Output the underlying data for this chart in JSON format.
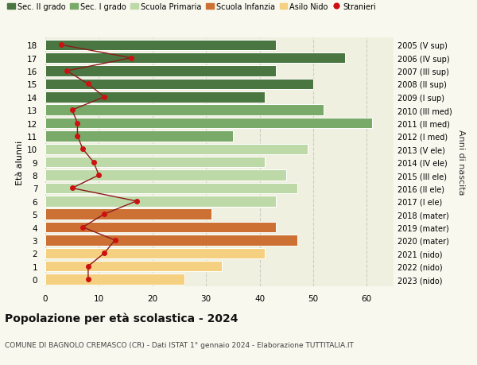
{
  "ages": [
    18,
    17,
    16,
    15,
    14,
    13,
    12,
    11,
    10,
    9,
    8,
    7,
    6,
    5,
    4,
    3,
    2,
    1,
    0
  ],
  "bar_values": [
    43,
    56,
    43,
    50,
    41,
    52,
    61,
    35,
    49,
    41,
    45,
    47,
    43,
    31,
    43,
    47,
    41,
    33,
    26
  ],
  "stranieri_values": [
    3,
    16,
    4,
    8,
    11,
    5,
    6,
    6,
    7,
    9,
    10,
    5,
    17,
    11,
    7,
    13,
    11,
    8,
    8
  ],
  "right_labels": [
    "2005 (V sup)",
    "2006 (IV sup)",
    "2007 (III sup)",
    "2008 (II sup)",
    "2009 (I sup)",
    "2010 (III med)",
    "2011 (II med)",
    "2012 (I med)",
    "2013 (V ele)",
    "2014 (IV ele)",
    "2015 (III ele)",
    "2016 (II ele)",
    "2017 (I ele)",
    "2018 (mater)",
    "2019 (mater)",
    "2020 (mater)",
    "2021 (nido)",
    "2022 (nido)",
    "2023 (nido)"
  ],
  "colors": {
    "sec2": "#4a7741",
    "sec1": "#7aaa6a",
    "primaria": "#bdd9a8",
    "infanzia": "#cc7033",
    "nido": "#f5d080"
  },
  "legend_colors": {
    "Sec. II grado": "#4a7741",
    "Sec. I grado": "#7aaa6a",
    "Scuola Primaria": "#bdd9a8",
    "Scuola Infanzia": "#cc7033",
    "Asilo Nido": "#f5d080",
    "Stranieri": "#cc1111"
  },
  "stranieri_line_color": "#8b1a1a",
  "stranieri_dot_color": "#cc1111",
  "title": "Popolazione per età scolastica - 2024",
  "subtitle": "COMUNE DI BAGNOLO CREMASCO (CR) - Dati ISTAT 1° gennaio 2024 - Elaborazione TUTTITALIA.IT",
  "ylabel": "Età alunni",
  "right_ylabel": "Anni di nascita",
  "xlim": [
    0,
    65
  ],
  "xticks": [
    0,
    10,
    20,
    30,
    40,
    50,
    60
  ],
  "background_color": "#f8f8ee",
  "bar_background": "#f0f0e0"
}
